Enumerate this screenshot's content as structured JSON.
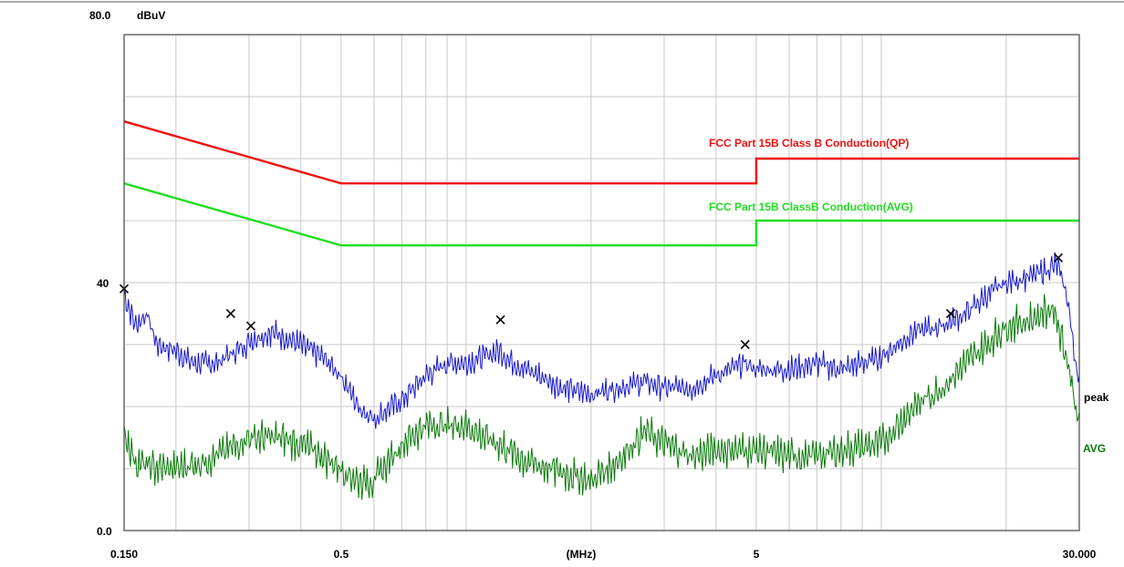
{
  "chart_data": {
    "type": "line",
    "y_top_label": "80.0",
    "y_unit": "dBuV",
    "y_tick_labels": [
      {
        "value": 40,
        "label": "40"
      },
      {
        "value": 0,
        "label": "0.0"
      }
    ],
    "x_tick_labels": [
      {
        "value": 0.15,
        "label": "0.150"
      },
      {
        "value": 0.5,
        "label": "0.5"
      },
      {
        "value": 5,
        "label": "5"
      },
      {
        "value": 30,
        "label": "30.000"
      }
    ],
    "x_unit_label": "(MHz)",
    "x_scale": "log",
    "xlim": [
      0.15,
      30
    ],
    "ylim": [
      0,
      80
    ],
    "grid": true,
    "colors": {
      "qp_limit": "#ee1111",
      "avg_limit": "#22dd22",
      "peak_trace": "#1818cc",
      "avg_trace": "#0a7a0a",
      "marker": "#000000",
      "grid": "#c8c8c8",
      "frame": "#444444"
    },
    "limits": [
      {
        "name": "FCC Part 15B Class B Conduction(QP)",
        "color_key": "qp_limit",
        "points": [
          [
            0.15,
            66.0
          ],
          [
            0.5,
            56.0
          ],
          [
            5.0,
            56.0
          ],
          [
            5.0,
            60.0
          ],
          [
            30.0,
            60.0
          ]
        ]
      },
      {
        "name": "FCC Part 15B ClassB Conduction(AVG)",
        "color_key": "avg_limit",
        "points": [
          [
            0.15,
            56.0
          ],
          [
            0.5,
            46.0
          ],
          [
            5.0,
            46.0
          ],
          [
            5.0,
            50.0
          ],
          [
            30.0,
            50.0
          ]
        ]
      }
    ],
    "series": [
      {
        "name": "peak",
        "color_key": "peak_trace",
        "points": [
          [
            0.15,
            38.0
          ],
          [
            0.16,
            33.0
          ],
          [
            0.17,
            35.0
          ],
          [
            0.18,
            30.0
          ],
          [
            0.2,
            29.0
          ],
          [
            0.22,
            27.0
          ],
          [
            0.25,
            27.0
          ],
          [
            0.28,
            29.0
          ],
          [
            0.31,
            31.0
          ],
          [
            0.34,
            32.0
          ],
          [
            0.37,
            31.0
          ],
          [
            0.4,
            30.0
          ],
          [
            0.45,
            28.0
          ],
          [
            0.5,
            25.0
          ],
          [
            0.55,
            20.0
          ],
          [
            0.6,
            18.0
          ],
          [
            0.7,
            21.0
          ],
          [
            0.8,
            25.0
          ],
          [
            0.9,
            27.0
          ],
          [
            1.0,
            27.0
          ],
          [
            1.1,
            28.0
          ],
          [
            1.2,
            29.0
          ],
          [
            1.3,
            27.0
          ],
          [
            1.5,
            25.0
          ],
          [
            1.7,
            23.0
          ],
          [
            2.0,
            22.0
          ],
          [
            2.3,
            23.0
          ],
          [
            2.7,
            24.0
          ],
          [
            3.0,
            23.0
          ],
          [
            3.5,
            23.0
          ],
          [
            4.0,
            25.0
          ],
          [
            4.7,
            27.0
          ],
          [
            5.0,
            26.0
          ],
          [
            6.0,
            26.0
          ],
          [
            7.0,
            27.0
          ],
          [
            8.0,
            26.0
          ],
          [
            10.0,
            28.0
          ],
          [
            12.0,
            32.0
          ],
          [
            14.0,
            33.0
          ],
          [
            16.0,
            35.0
          ],
          [
            18.0,
            38.0
          ],
          [
            20.0,
            40.0
          ],
          [
            23.0,
            41.0
          ],
          [
            25.0,
            42.0
          ],
          [
            26.5,
            43.0
          ],
          [
            28.0,
            38.0
          ],
          [
            30.0,
            23.0
          ]
        ]
      },
      {
        "name": "AVG",
        "color_key": "avg_trace",
        "points": [
          [
            0.15,
            16.0
          ],
          [
            0.16,
            11.0
          ],
          [
            0.18,
            10.0
          ],
          [
            0.2,
            10.0
          ],
          [
            0.23,
            11.0
          ],
          [
            0.25,
            12.0
          ],
          [
            0.3,
            15.0
          ],
          [
            0.35,
            15.0
          ],
          [
            0.4,
            14.0
          ],
          [
            0.45,
            12.0
          ],
          [
            0.5,
            10.0
          ],
          [
            0.55,
            8.0
          ],
          [
            0.6,
            8.0
          ],
          [
            0.7,
            14.0
          ],
          [
            0.8,
            17.0
          ],
          [
            0.9,
            17.0
          ],
          [
            1.0,
            17.0
          ],
          [
            1.1,
            15.0
          ],
          [
            1.2,
            14.0
          ],
          [
            1.4,
            11.0
          ],
          [
            1.6,
            10.0
          ],
          [
            2.0,
            8.0
          ],
          [
            2.3,
            11.0
          ],
          [
            2.7,
            16.0
          ],
          [
            3.0,
            14.0
          ],
          [
            3.5,
            12.0
          ],
          [
            4.0,
            13.0
          ],
          [
            5.0,
            13.0
          ],
          [
            6.0,
            12.0
          ],
          [
            7.0,
            12.0
          ],
          [
            8.0,
            13.0
          ],
          [
            10.0,
            14.0
          ],
          [
            12.0,
            20.0
          ],
          [
            14.0,
            23.0
          ],
          [
            16.0,
            27.0
          ],
          [
            18.0,
            30.0
          ],
          [
            20.0,
            33.0
          ],
          [
            23.0,
            34.0
          ],
          [
            26.0,
            36.0
          ],
          [
            28.0,
            28.0
          ],
          [
            30.0,
            17.0
          ]
        ]
      }
    ],
    "markers": [
      {
        "x": 0.15,
        "y": 39.0
      },
      {
        "x": 0.271,
        "y": 35.0
      },
      {
        "x": 0.303,
        "y": 33.0
      },
      {
        "x": 1.21,
        "y": 34.0
      },
      {
        "x": 4.7,
        "y": 30.0
      },
      {
        "x": 14.7,
        "y": 35.0
      },
      {
        "x": 26.7,
        "y": 44.0
      }
    ]
  }
}
